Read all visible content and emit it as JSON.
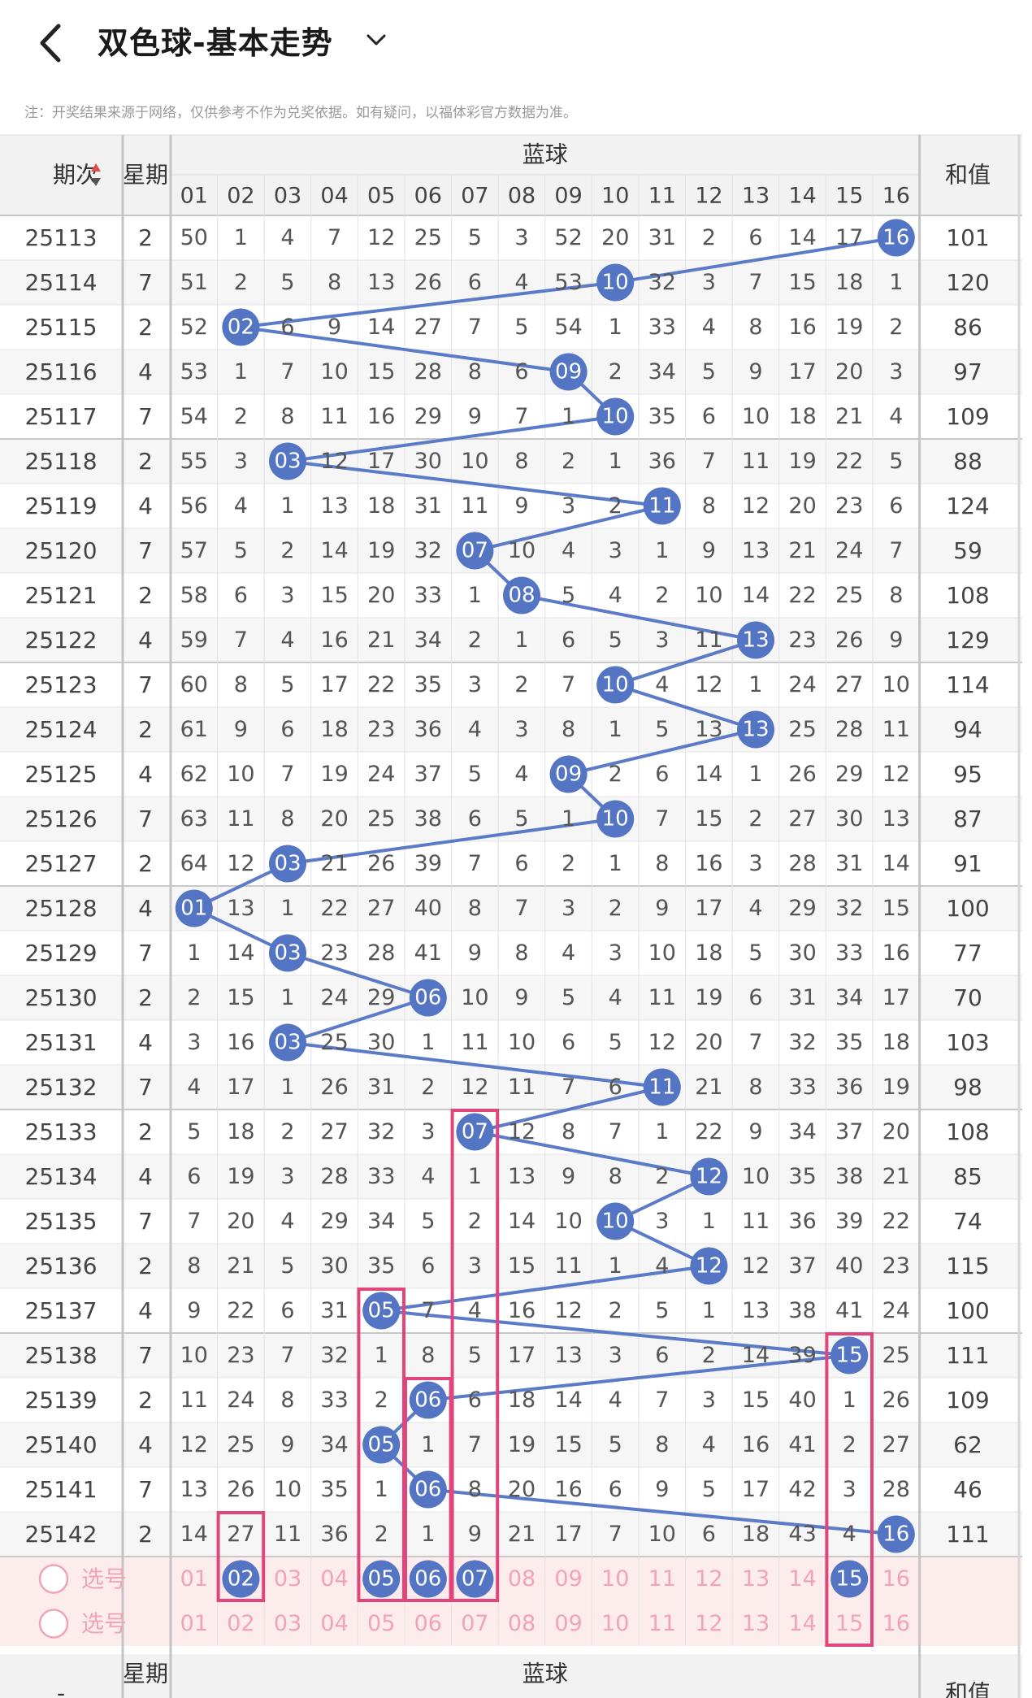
{
  "app": {
    "title": "双色球-基本走势",
    "note": "注：开奖结果来源于网络，仅供参考不作为兑奖依据。如有疑问，以福体彩官方数据为准。"
  },
  "table": {
    "col_period": "期次",
    "col_week": "星期",
    "col_blue": "蓝球",
    "col_sum": "和值",
    "blue_numbers": [
      "01",
      "02",
      "03",
      "04",
      "05",
      "06",
      "07",
      "08",
      "09",
      "10",
      "11",
      "12",
      "13",
      "14",
      "15",
      "16"
    ],
    "rows": [
      {
        "period": "25113",
        "week": "2",
        "cells": [
          "50",
          "1",
          "4",
          "7",
          "12",
          "25",
          "5",
          "3",
          "52",
          "20",
          "31",
          "2",
          "6",
          "14",
          "17",
          "16"
        ],
        "sum": "101"
      },
      {
        "period": "25114",
        "week": "7",
        "cells": [
          "51",
          "2",
          "5",
          "8",
          "13",
          "26",
          "6",
          "4",
          "53",
          "10",
          "32",
          "3",
          "7",
          "15",
          "18",
          "1"
        ],
        "sum": "120"
      },
      {
        "period": "25115",
        "week": "2",
        "cells": [
          "52",
          "02",
          "6",
          "9",
          "14",
          "27",
          "7",
          "5",
          "54",
          "1",
          "33",
          "4",
          "8",
          "16",
          "19",
          "2"
        ],
        "sum": "86"
      },
      {
        "period": "25116",
        "week": "4",
        "cells": [
          "53",
          "1",
          "7",
          "10",
          "15",
          "28",
          "8",
          "6",
          "09",
          "2",
          "34",
          "5",
          "9",
          "17",
          "20",
          "3"
        ],
        "sum": "97"
      },
      {
        "period": "25117",
        "week": "7",
        "cells": [
          "54",
          "2",
          "8",
          "11",
          "16",
          "29",
          "9",
          "7",
          "1",
          "10",
          "35",
          "6",
          "10",
          "18",
          "21",
          "4"
        ],
        "sum": "109"
      },
      {
        "period": "25118",
        "week": "2",
        "cells": [
          "55",
          "3",
          "03",
          "12",
          "17",
          "30",
          "10",
          "8",
          "2",
          "1",
          "36",
          "7",
          "11",
          "19",
          "22",
          "5"
        ],
        "sum": "88"
      },
      {
        "period": "25119",
        "week": "4",
        "cells": [
          "56",
          "4",
          "1",
          "13",
          "18",
          "31",
          "11",
          "9",
          "3",
          "2",
          "11",
          "8",
          "12",
          "20",
          "23",
          "6"
        ],
        "sum": "124"
      },
      {
        "period": "25120",
        "week": "7",
        "cells": [
          "57",
          "5",
          "2",
          "14",
          "19",
          "32",
          "07",
          "10",
          "4",
          "3",
          "1",
          "9",
          "13",
          "21",
          "24",
          "7"
        ],
        "sum": "59"
      },
      {
        "period": "25121",
        "week": "2",
        "cells": [
          "58",
          "6",
          "3",
          "15",
          "20",
          "33",
          "1",
          "08",
          "5",
          "4",
          "2",
          "10",
          "14",
          "22",
          "25",
          "8"
        ],
        "sum": "108"
      },
      {
        "period": "25122",
        "week": "4",
        "cells": [
          "59",
          "7",
          "4",
          "16",
          "21",
          "34",
          "2",
          "1",
          "6",
          "5",
          "3",
          "11",
          "13",
          "23",
          "26",
          "9"
        ],
        "sum": "129"
      },
      {
        "period": "25123",
        "week": "7",
        "cells": [
          "60",
          "8",
          "5",
          "17",
          "22",
          "35",
          "3",
          "2",
          "7",
          "10",
          "4",
          "12",
          "1",
          "24",
          "27",
          "10"
        ],
        "sum": "114"
      },
      {
        "period": "25124",
        "week": "2",
        "cells": [
          "61",
          "9",
          "6",
          "18",
          "23",
          "36",
          "4",
          "3",
          "8",
          "1",
          "5",
          "13",
          "13",
          "25",
          "28",
          "11"
        ],
        "sum": "94"
      },
      {
        "period": "25125",
        "week": "4",
        "cells": [
          "62",
          "10",
          "7",
          "19",
          "24",
          "37",
          "5",
          "4",
          "09",
          "2",
          "6",
          "14",
          "1",
          "26",
          "29",
          "12"
        ],
        "sum": "95"
      },
      {
        "period": "25126",
        "week": "7",
        "cells": [
          "63",
          "11",
          "8",
          "20",
          "25",
          "38",
          "6",
          "5",
          "1",
          "10",
          "7",
          "15",
          "2",
          "27",
          "30",
          "13"
        ],
        "sum": "87"
      },
      {
        "period": "25127",
        "week": "2",
        "cells": [
          "64",
          "12",
          "03",
          "21",
          "26",
          "39",
          "7",
          "6",
          "2",
          "1",
          "8",
          "16",
          "3",
          "28",
          "31",
          "14"
        ],
        "sum": "91"
      },
      {
        "period": "25128",
        "week": "4",
        "cells": [
          "01",
          "13",
          "1",
          "22",
          "27",
          "40",
          "8",
          "7",
          "3",
          "2",
          "9",
          "17",
          "4",
          "29",
          "32",
          "15"
        ],
        "sum": "100"
      },
      {
        "period": "25129",
        "week": "7",
        "cells": [
          "1",
          "14",
          "03",
          "23",
          "28",
          "41",
          "9",
          "8",
          "4",
          "3",
          "10",
          "18",
          "5",
          "30",
          "33",
          "16"
        ],
        "sum": "77"
      },
      {
        "period": "25130",
        "week": "2",
        "cells": [
          "2",
          "15",
          "1",
          "24",
          "29",
          "06",
          "10",
          "9",
          "5",
          "4",
          "11",
          "19",
          "6",
          "31",
          "34",
          "17"
        ],
        "sum": "70"
      },
      {
        "period": "25131",
        "week": "4",
        "cells": [
          "3",
          "16",
          "03",
          "25",
          "30",
          "1",
          "11",
          "10",
          "6",
          "5",
          "12",
          "20",
          "7",
          "32",
          "35",
          "18"
        ],
        "sum": "103"
      },
      {
        "period": "25132",
        "week": "7",
        "cells": [
          "4",
          "17",
          "1",
          "26",
          "31",
          "2",
          "12",
          "11",
          "7",
          "6",
          "11",
          "21",
          "8",
          "33",
          "36",
          "19"
        ],
        "sum": "98"
      },
      {
        "period": "25133",
        "week": "2",
        "cells": [
          "5",
          "18",
          "2",
          "27",
          "32",
          "3",
          "07",
          "12",
          "8",
          "7",
          "1",
          "22",
          "9",
          "34",
          "37",
          "20"
        ],
        "sum": "108"
      },
      {
        "period": "25134",
        "week": "4",
        "cells": [
          "6",
          "19",
          "3",
          "28",
          "33",
          "4",
          "1",
          "13",
          "9",
          "8",
          "2",
          "12",
          "10",
          "35",
          "38",
          "21"
        ],
        "sum": "85"
      },
      {
        "period": "25135",
        "week": "7",
        "cells": [
          "7",
          "20",
          "4",
          "29",
          "34",
          "5",
          "2",
          "14",
          "10",
          "10",
          "3",
          "1",
          "11",
          "36",
          "39",
          "22"
        ],
        "sum": "74"
      },
      {
        "period": "25136",
        "week": "2",
        "cells": [
          "8",
          "21",
          "5",
          "30",
          "35",
          "6",
          "3",
          "15",
          "11",
          "1",
          "4",
          "12",
          "12",
          "37",
          "40",
          "23"
        ],
        "sum": "115"
      },
      {
        "period": "25137",
        "week": "4",
        "cells": [
          "9",
          "22",
          "6",
          "31",
          "05",
          "7",
          "4",
          "16",
          "12",
          "2",
          "5",
          "1",
          "13",
          "38",
          "41",
          "24"
        ],
        "sum": "100"
      },
      {
        "period": "25138",
        "week": "7",
        "cells": [
          "10",
          "23",
          "7",
          "32",
          "1",
          "8",
          "5",
          "17",
          "13",
          "3",
          "6",
          "2",
          "14",
          "39",
          "15",
          "25"
        ],
        "sum": "111"
      },
      {
        "period": "25139",
        "week": "2",
        "cells": [
          "11",
          "24",
          "8",
          "33",
          "2",
          "06",
          "6",
          "18",
          "14",
          "4",
          "7",
          "3",
          "15",
          "40",
          "1",
          "26"
        ],
        "sum": "109"
      },
      {
        "period": "25140",
        "week": "4",
        "cells": [
          "12",
          "25",
          "9",
          "34",
          "05",
          "1",
          "7",
          "19",
          "15",
          "5",
          "8",
          "4",
          "16",
          "41",
          "2",
          "27"
        ],
        "sum": "62"
      },
      {
        "period": "25141",
        "week": "7",
        "cells": [
          "13",
          "26",
          "10",
          "35",
          "1",
          "06",
          "8",
          "20",
          "16",
          "6",
          "9",
          "5",
          "17",
          "42",
          "3",
          "28"
        ],
        "sum": "46"
      },
      {
        "period": "25142",
        "week": "2",
        "cells": [
          "14",
          "27",
          "11",
          "36",
          "2",
          "1",
          "9",
          "21",
          "17",
          "7",
          "10",
          "6",
          "18",
          "43",
          "4",
          "16"
        ],
        "sum": "111"
      }
    ],
    "hits": [
      16,
      10,
      2,
      9,
      10,
      3,
      11,
      7,
      8,
      13,
      10,
      13,
      9,
      10,
      3,
      1,
      3,
      6,
      3,
      11,
      7,
      12,
      10,
      12,
      5,
      15,
      6,
      5,
      6,
      16
    ],
    "select_label": "选号",
    "selected_picks": [
      2,
      5,
      6,
      7,
      15
    ],
    "highlight_boxes": [
      {
        "col": 2,
        "from_row": 29,
        "to_row": 30
      },
      {
        "col": 5,
        "from_row": 24,
        "to_row": 30
      },
      {
        "col": 6,
        "from_row": 26,
        "to_row": 30
      },
      {
        "col": 7,
        "from_row": 20,
        "to_row": 30
      },
      {
        "col": 15,
        "from_row": 25,
        "to_row": 31
      }
    ],
    "footer_week_label": "星期",
    "footer_blue_label": "蓝球",
    "footer_sum_label": "和值",
    "footer_period_label": "-"
  },
  "colors": {
    "blue_ball": "#5474c4",
    "line": "#5b7ac8",
    "highlight": "#e0457b",
    "pick_text": "#f0a4b4",
    "pick_row_bg": "#fdecec",
    "header_bg": "#f2f2f2",
    "stripe": "#f6f6f6",
    "sort_up": "#e34848"
  }
}
